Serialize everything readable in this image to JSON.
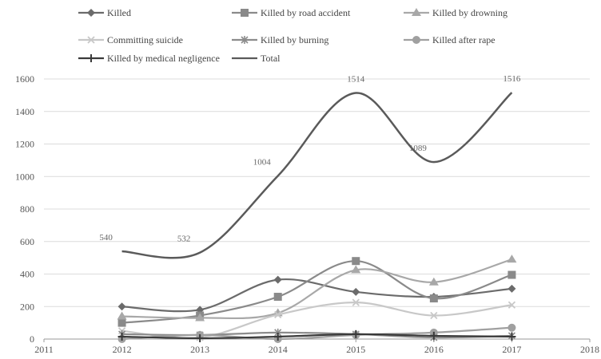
{
  "chart_data": {
    "type": "line",
    "title": "",
    "xlabel": "",
    "ylabel": "",
    "x": [
      2012,
      2013,
      2014,
      2015,
      2016,
      2017
    ],
    "xlim": [
      2011,
      2018
    ],
    "xticks": [
      "2011",
      "2012",
      "2013",
      "2014",
      "2015",
      "2016",
      "2017",
      "2018"
    ],
    "ylim": [
      0,
      1600
    ],
    "yticks": [
      "0",
      "200",
      "400",
      "600",
      "800",
      "1000",
      "1200",
      "1400",
      "1600"
    ],
    "grid": "horizontal",
    "legend_position": "top",
    "series": [
      {
        "name": "Killed",
        "color": "#6b6b6b",
        "marker": "diamond",
        "values": [
          200,
          180,
          365,
          290,
          260,
          310
        ]
      },
      {
        "name": "Killed by road accident",
        "color": "#8a8a8a",
        "marker": "square",
        "values": [
          100,
          145,
          260,
          480,
          250,
          395
        ]
      },
      {
        "name": "Killed by drowning",
        "color": "#a8a8a8",
        "marker": "triangle",
        "values": [
          140,
          130,
          160,
          425,
          350,
          490
        ]
      },
      {
        "name": "Committing suicide",
        "color": "#c8c8c8",
        "marker": "x",
        "values": [
          50,
          10,
          150,
          225,
          145,
          210
        ]
      },
      {
        "name": "Killed by burning",
        "color": "#8c8c8c",
        "marker": "star",
        "values": [
          30,
          25,
          40,
          30,
          10,
          20
        ]
      },
      {
        "name": "Killed after rape",
        "color": "#a0a0a0",
        "marker": "circle",
        "values": [
          0,
          25,
          0,
          25,
          40,
          70
        ]
      },
      {
        "name": "Killed by medical negligence",
        "color": "#3a3a3a",
        "marker": "plus",
        "values": [
          15,
          5,
          15,
          30,
          20,
          15
        ]
      },
      {
        "name": "Total",
        "color": "#5a5a5a",
        "marker": "none",
        "values": [
          540,
          532,
          1004,
          1514,
          1089,
          1516
        ],
        "data_labels": [
          "540",
          "532",
          "1004",
          "1514",
          "1089",
          "1516"
        ]
      }
    ]
  }
}
